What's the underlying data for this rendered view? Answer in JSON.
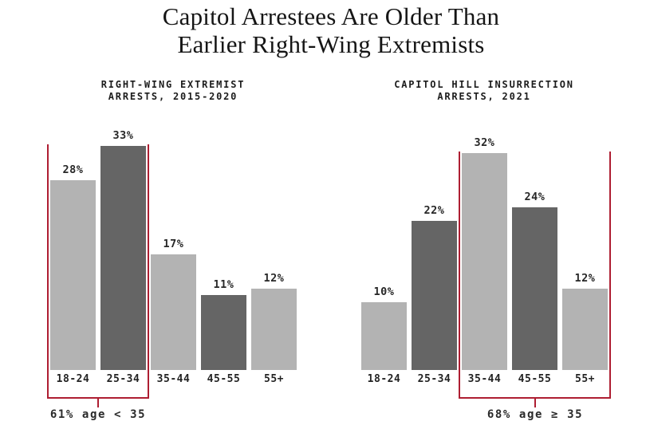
{
  "title": {
    "line1": "Capitol Arrestees Are Older Than",
    "line2": "Earlier Right-Wing Extremists"
  },
  "colors": {
    "light_bar": "#b3b3b3",
    "dark_bar": "#656565",
    "bracket_red": "#ae1e32",
    "text": "#232323"
  },
  "chart_data": [
    {
      "type": "bar",
      "title": "RIGHT-WING EXTREMIST ARRESTS, 2015-2020",
      "title_lines": [
        "RIGHT-WING EXTREMIST",
        "ARRESTS, 2015-2020"
      ],
      "categories": [
        "18-24",
        "25-34",
        "35-44",
        "45-55",
        "55+"
      ],
      "values": [
        28,
        33,
        17,
        11,
        12
      ],
      "value_labels": [
        "28%",
        "33%",
        "17%",
        "11%",
        "12%"
      ],
      "bar_shades": [
        "light",
        "dark",
        "light",
        "dark",
        "light"
      ],
      "ylabel": "",
      "xlabel": "",
      "ylim": [
        0,
        35
      ],
      "grid": false,
      "legend": false,
      "annotation": {
        "label": "61% age < 35",
        "span_start_category": "18-24",
        "span_end_category": "25-34",
        "span": [
          0,
          1
        ]
      }
    },
    {
      "type": "bar",
      "title": "CAPITOL HILL INSURRECTION ARRESTS, 2021",
      "title_lines": [
        "CAPITOL HILL INSURRECTION",
        "ARRESTS, 2021"
      ],
      "categories": [
        "18-24",
        "25-34",
        "35-44",
        "45-55",
        "55+"
      ],
      "values": [
        10,
        22,
        32,
        24,
        12
      ],
      "value_labels": [
        "10%",
        "22%",
        "32%",
        "24%",
        "12%"
      ],
      "bar_shades": [
        "light",
        "dark",
        "light",
        "dark",
        "light"
      ],
      "ylabel": "",
      "xlabel": "",
      "ylim": [
        0,
        35
      ],
      "grid": false,
      "legend": false,
      "annotation": {
        "label": "68% age ≥ 35",
        "span_start_category": "35-44",
        "span_end_category": "55+",
        "span": [
          2,
          4
        ]
      }
    }
  ]
}
